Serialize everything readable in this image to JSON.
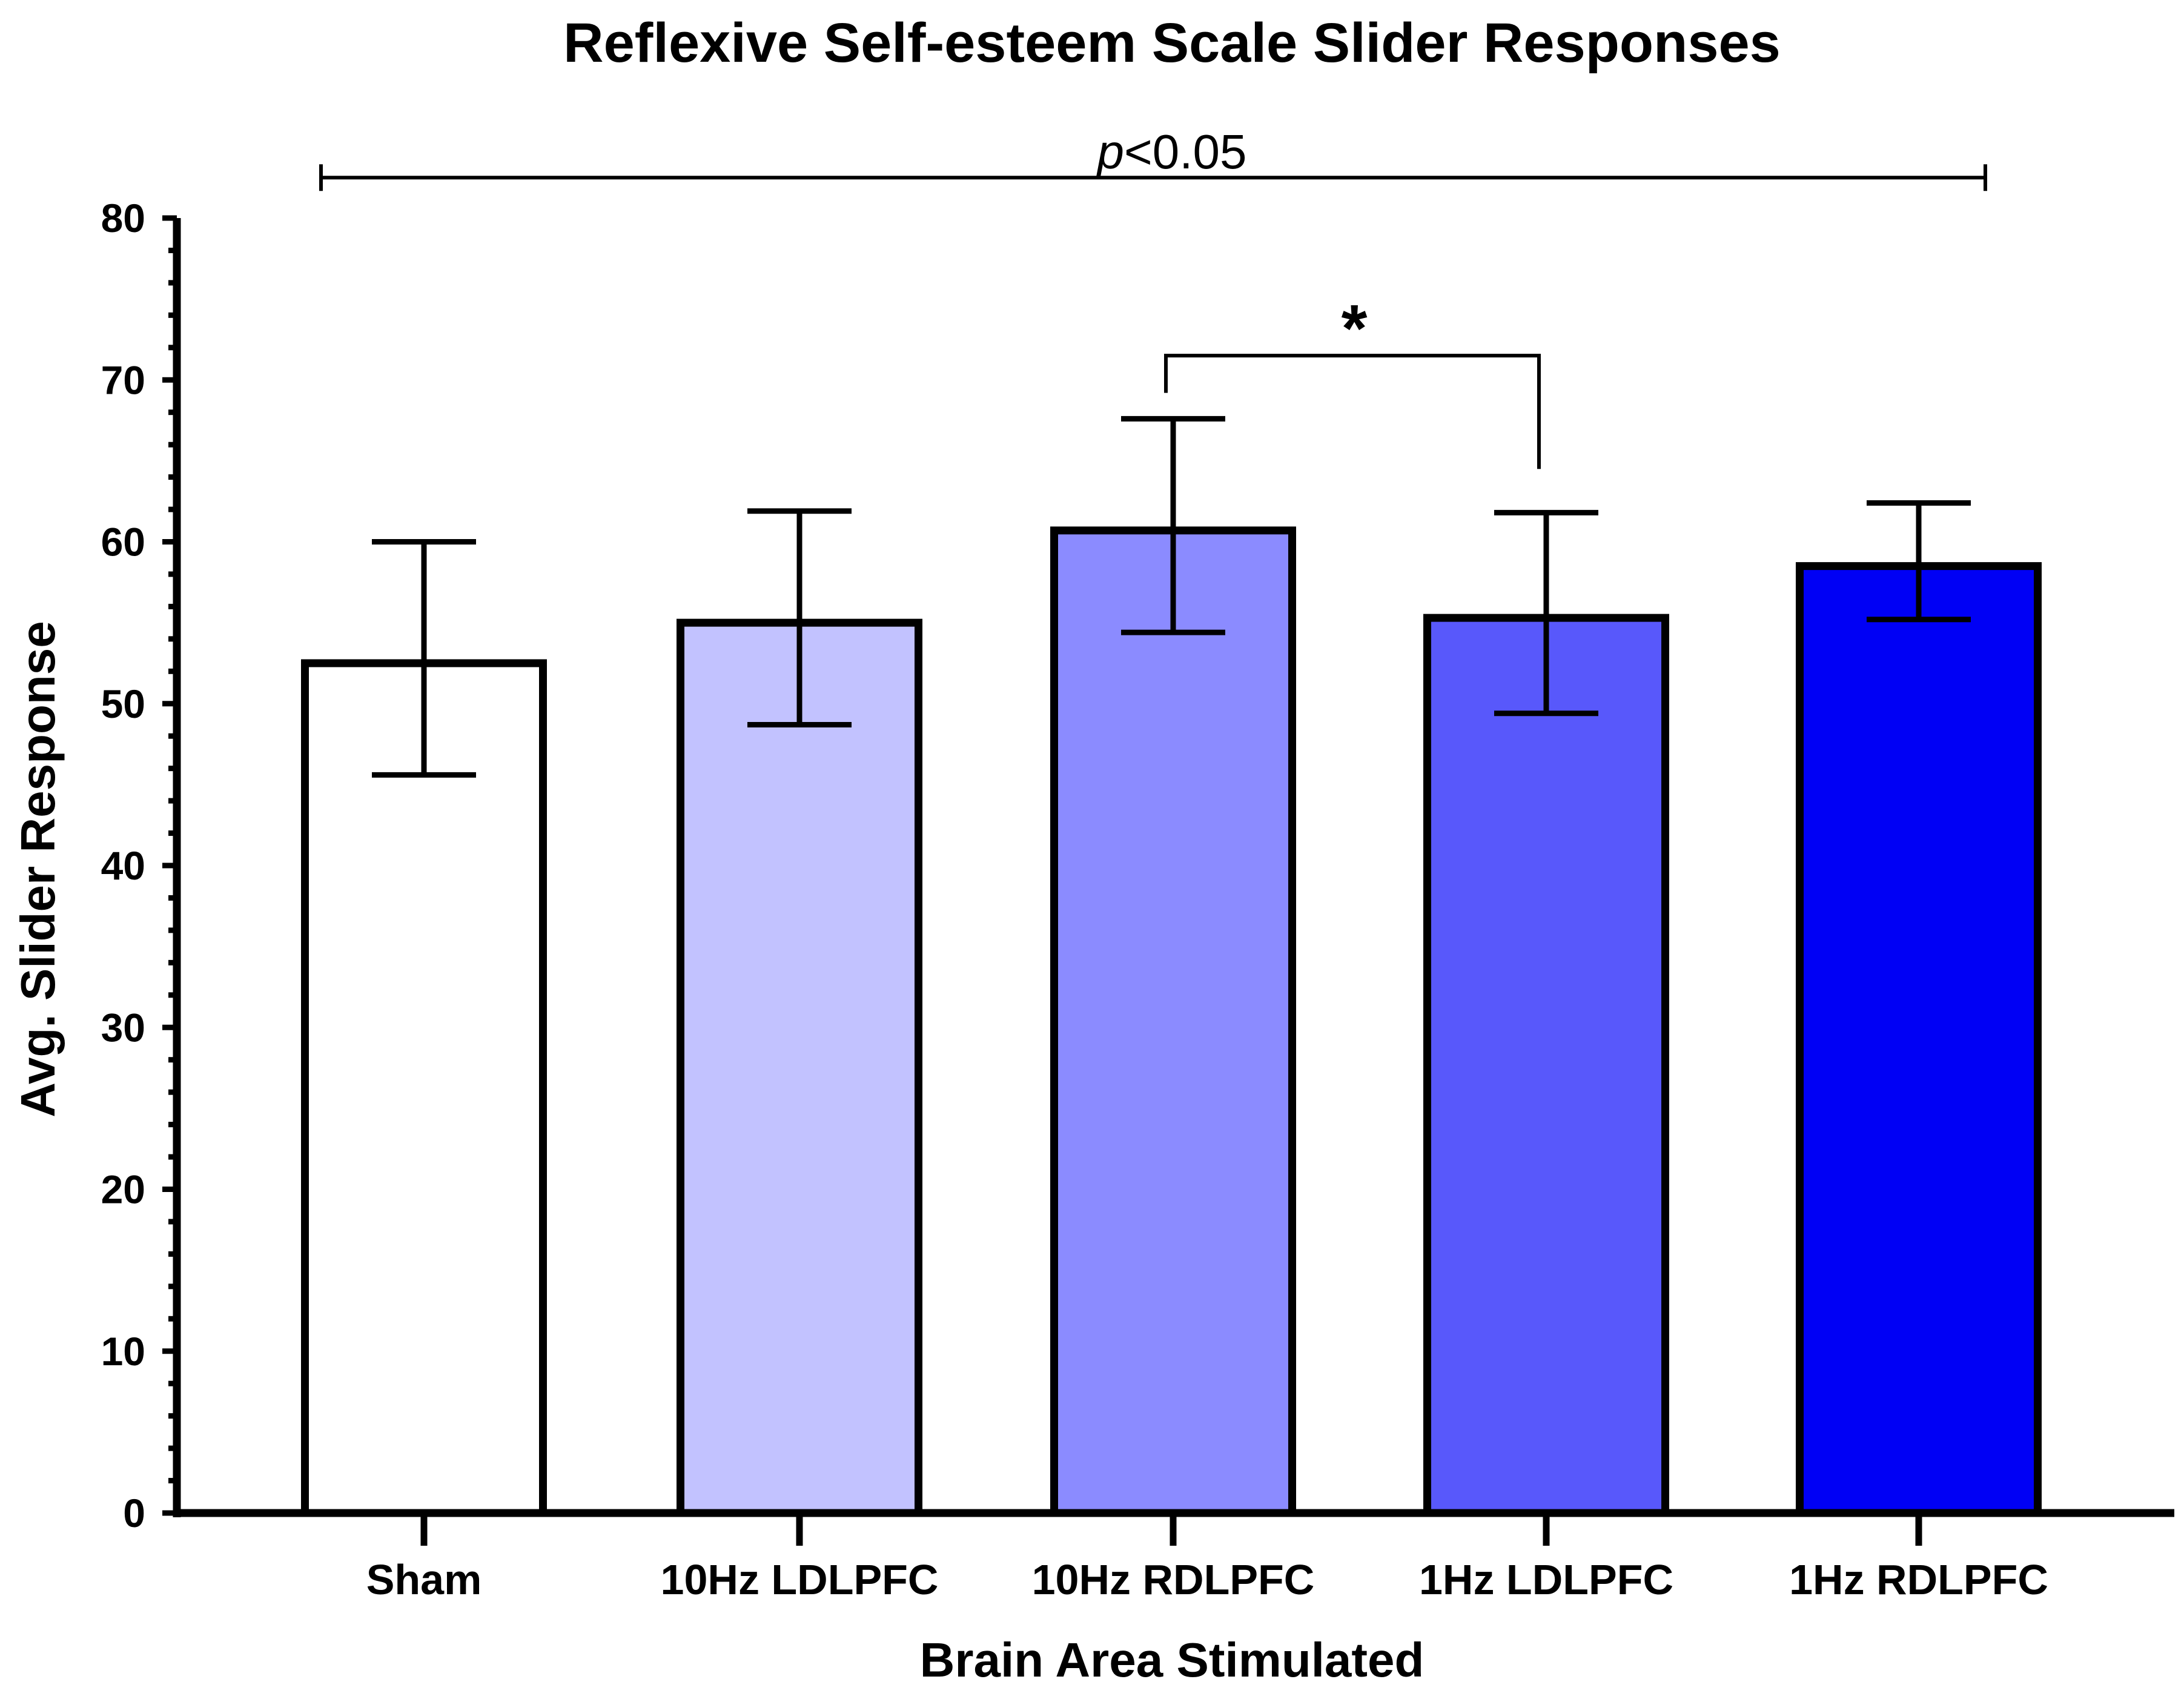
{
  "chart_data": {
    "type": "bar",
    "title": "Reflexive Self-esteem Scale Slider Responses",
    "xlabel": "Brain Area Stimulated",
    "ylabel": "Avg. Slider Response",
    "ylim": [
      0,
      80
    ],
    "yticks": [
      "0",
      "10",
      "20",
      "30",
      "40",
      "50",
      "60",
      "70",
      "80"
    ],
    "categories": [
      "Sham",
      "10Hz LDLPFC",
      "10Hz RDLPFC",
      "1Hz LDLPFC",
      "1Hz RDLPFC"
    ],
    "values": [
      52.5,
      55.0,
      60.7,
      55.3,
      58.5
    ],
    "error_low": [
      45.6,
      48.7,
      54.4,
      49.4,
      55.2
    ],
    "error_high": [
      60.0,
      61.9,
      67.6,
      61.8,
      62.4
    ],
    "colors": [
      "#ffffff",
      "#c2c2ff",
      "#8b8bff",
      "#5858fb",
      "#0000f5"
    ],
    "significance": [
      {
        "from": "Sham",
        "to": "1Hz RDLPFC",
        "label_prefix": "p",
        "label_rest": "<0.05",
        "y": 82.5
      },
      {
        "from": "10Hz RDLPFC",
        "to": "1Hz LDLPFC",
        "label": "*",
        "y": 71.5
      }
    ]
  }
}
